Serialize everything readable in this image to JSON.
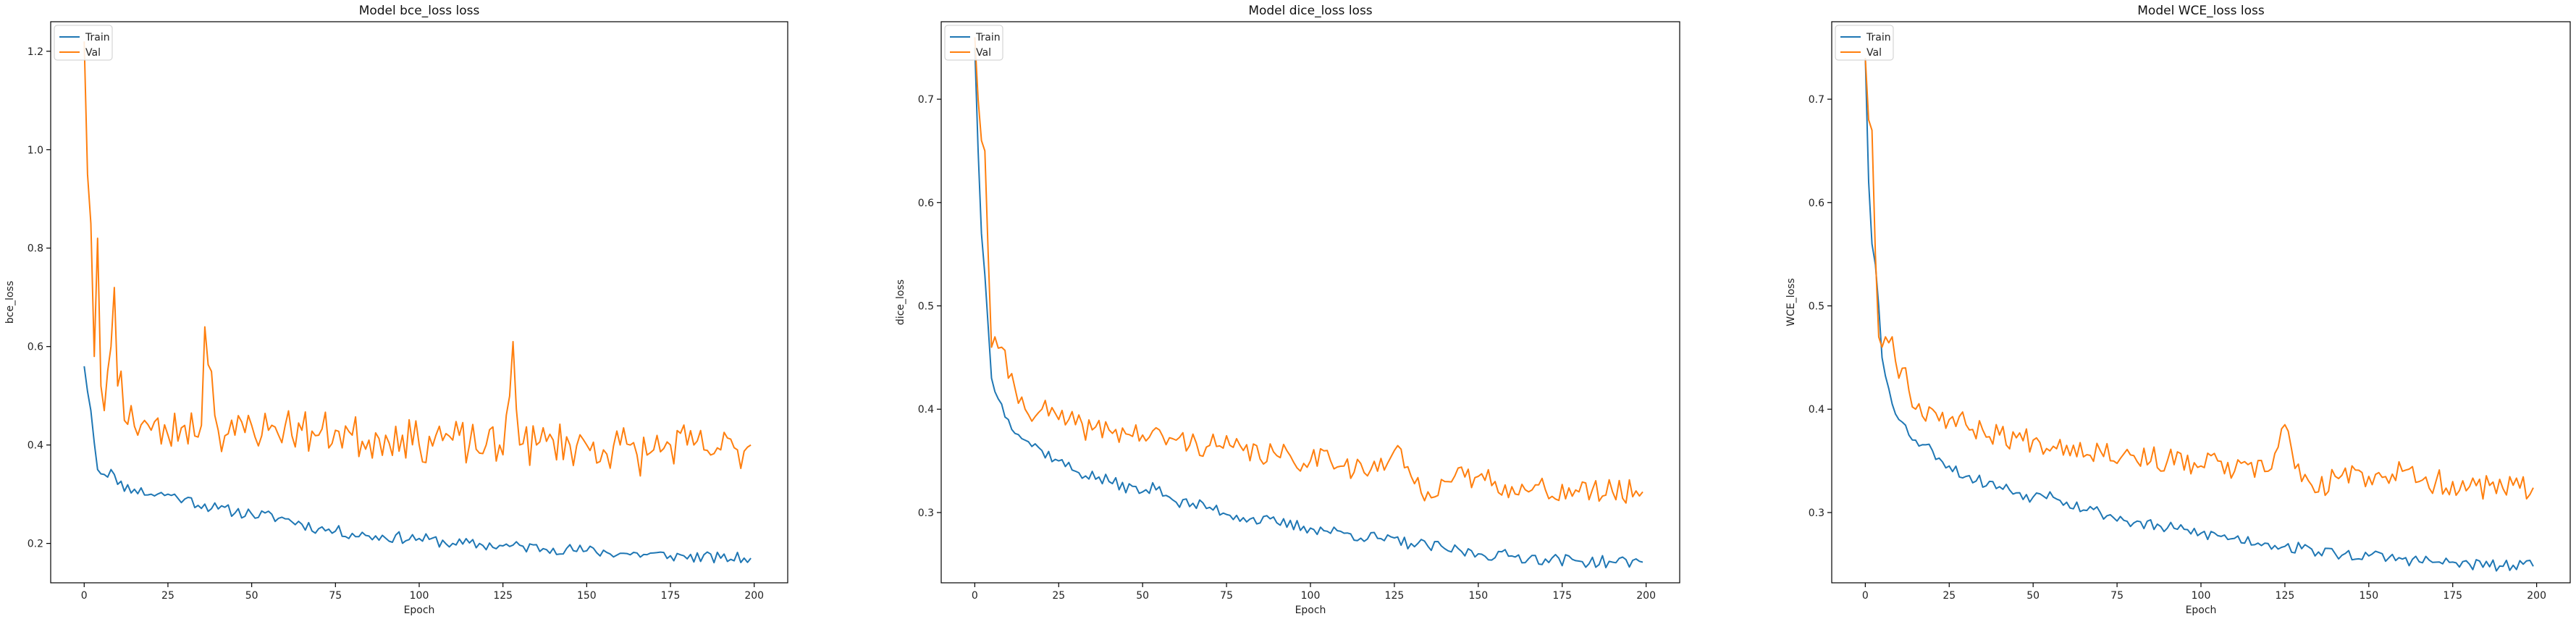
{
  "colors": {
    "train": "#1f77b4",
    "val": "#ff7f0e"
  },
  "chart_data": [
    {
      "type": "line",
      "title": "Model bce_loss loss",
      "xlabel": "Epoch",
      "ylabel": "bce_loss",
      "xlim": [
        -10,
        210
      ],
      "ylim": [
        0.12,
        1.26
      ],
      "xticks": [
        0,
        25,
        50,
        75,
        100,
        125,
        150,
        175,
        200
      ],
      "xtick_labels": [
        "0",
        "25",
        "50",
        "75",
        "100",
        "125",
        "150",
        "175",
        "200"
      ],
      "yticks": [
        0.2,
        0.4,
        0.6,
        0.8,
        1.0,
        1.2
      ],
      "ytick_labels": [
        "0.2",
        "0.4",
        "0.6",
        "0.8",
        "1.0",
        "1.2"
      ],
      "legend": "upper-left",
      "series": [
        {
          "name": "Train",
          "color": "train",
          "keypoints": [
            [
              0,
              0.56
            ],
            [
              2,
              0.47
            ],
            [
              4,
              0.35
            ],
            [
              6,
              0.34
            ],
            [
              8,
              0.35
            ],
            [
              10,
              0.32
            ],
            [
              15,
              0.31
            ],
            [
              20,
              0.3
            ],
            [
              25,
              0.3
            ],
            [
              30,
              0.29
            ],
            [
              40,
              0.27
            ],
            [
              50,
              0.26
            ],
            [
              60,
              0.25
            ],
            [
              70,
              0.23
            ],
            [
              75,
              0.225
            ],
            [
              85,
              0.215
            ],
            [
              100,
              0.21
            ],
            [
              110,
              0.2
            ],
            [
              125,
              0.195
            ],
            [
              140,
              0.19
            ],
            [
              150,
              0.185
            ],
            [
              160,
              0.18
            ],
            [
              175,
              0.175
            ],
            [
              190,
              0.17
            ],
            [
              199,
              0.17
            ]
          ],
          "noise": 0.012,
          "seed": 11
        },
        {
          "name": "Val",
          "color": "val",
          "keypoints": [
            [
              0,
              1.22
            ],
            [
              1,
              0.95
            ],
            [
              2,
              0.85
            ],
            [
              3,
              0.58
            ],
            [
              4,
              0.82
            ],
            [
              5,
              0.52
            ],
            [
              6,
              0.47
            ],
            [
              7,
              0.55
            ],
            [
              8,
              0.6
            ],
            [
              9,
              0.72
            ],
            [
              10,
              0.52
            ],
            [
              11,
              0.55
            ],
            [
              12,
              0.45
            ],
            [
              14,
              0.48
            ],
            [
              16,
              0.42
            ],
            [
              18,
              0.45
            ],
            [
              20,
              0.43
            ],
            [
              25,
              0.42
            ],
            [
              30,
              0.44
            ],
            [
              35,
              0.44
            ],
            [
              36,
              0.64
            ],
            [
              40,
              0.43
            ],
            [
              45,
              0.42
            ],
            [
              50,
              0.44
            ],
            [
              55,
              0.43
            ],
            [
              60,
              0.44
            ],
            [
              65,
              0.43
            ],
            [
              70,
              0.42
            ],
            [
              75,
              0.43
            ],
            [
              80,
              0.42
            ],
            [
              85,
              0.41
            ],
            [
              90,
              0.42
            ],
            [
              95,
              0.42
            ],
            [
              100,
              0.4
            ],
            [
              105,
              0.42
            ],
            [
              110,
              0.41
            ],
            [
              115,
              0.4
            ],
            [
              120,
              0.4
            ],
            [
              125,
              0.38
            ],
            [
              128,
              0.61
            ],
            [
              130,
              0.4
            ],
            [
              135,
              0.4
            ],
            [
              140,
              0.41
            ],
            [
              145,
              0.4
            ],
            [
              150,
              0.4
            ],
            [
              155,
              0.39
            ],
            [
              160,
              0.4
            ],
            [
              165,
              0.38
            ],
            [
              170,
              0.39
            ],
            [
              175,
              0.4
            ],
            [
              180,
              0.4
            ],
            [
              185,
              0.39
            ],
            [
              190,
              0.39
            ],
            [
              195,
              0.39
            ],
            [
              199,
              0.4
            ]
          ],
          "noise": 0.045,
          "seed": 23
        }
      ]
    },
    {
      "type": "line",
      "title": "Model dice_loss loss",
      "xlabel": "Epoch",
      "ylabel": "dice_loss",
      "xlim": [
        -10,
        210
      ],
      "ylim": [
        0.232,
        0.775
      ],
      "xticks": [
        0,
        25,
        50,
        75,
        100,
        125,
        150,
        175,
        200
      ],
      "xtick_labels": [
        "0",
        "25",
        "50",
        "75",
        "100",
        "125",
        "150",
        "175",
        "200"
      ],
      "yticks": [
        0.3,
        0.4,
        0.5,
        0.6,
        0.7
      ],
      "ytick_labels": [
        "0.3",
        "0.4",
        "0.5",
        "0.6",
        "0.7"
      ],
      "legend": "upper-left",
      "series": [
        {
          "name": "Train",
          "color": "train",
          "keypoints": [
            [
              0,
              0.75
            ],
            [
              1,
              0.65
            ],
            [
              2,
              0.57
            ],
            [
              3,
              0.53
            ],
            [
              4,
              0.48
            ],
            [
              5,
              0.43
            ],
            [
              7,
              0.41
            ],
            [
              10,
              0.39
            ],
            [
              15,
              0.37
            ],
            [
              20,
              0.36
            ],
            [
              25,
              0.35
            ],
            [
              30,
              0.34
            ],
            [
              40,
              0.33
            ],
            [
              50,
              0.32
            ],
            [
              55,
              0.325
            ],
            [
              60,
              0.31
            ],
            [
              70,
              0.305
            ],
            [
              80,
              0.295
            ],
            [
              90,
              0.29
            ],
            [
              100,
              0.285
            ],
            [
              110,
              0.28
            ],
            [
              120,
              0.275
            ],
            [
              130,
              0.27
            ],
            [
              140,
              0.265
            ],
            [
              150,
              0.26
            ],
            [
              160,
              0.258
            ],
            [
              170,
              0.255
            ],
            [
              180,
              0.253
            ],
            [
              190,
              0.252
            ],
            [
              199,
              0.252
            ]
          ],
          "noise": 0.006,
          "seed": 37
        },
        {
          "name": "Val",
          "color": "val",
          "keypoints": [
            [
              0,
              0.76
            ],
            [
              1,
              0.7
            ],
            [
              2,
              0.66
            ],
            [
              3,
              0.65
            ],
            [
              4,
              0.55
            ],
            [
              5,
              0.46
            ],
            [
              6,
              0.47
            ],
            [
              8,
              0.46
            ],
            [
              10,
              0.43
            ],
            [
              12,
              0.42
            ],
            [
              15,
              0.4
            ],
            [
              20,
              0.4
            ],
            [
              25,
              0.39
            ],
            [
              30,
              0.385
            ],
            [
              35,
              0.38
            ],
            [
              40,
              0.38
            ],
            [
              50,
              0.375
            ],
            [
              60,
              0.37
            ],
            [
              70,
              0.365
            ],
            [
              80,
              0.36
            ],
            [
              90,
              0.355
            ],
            [
              100,
              0.35
            ],
            [
              105,
              0.36
            ],
            [
              110,
              0.345
            ],
            [
              120,
              0.34
            ],
            [
              125,
              0.36
            ],
            [
              130,
              0.335
            ],
            [
              135,
              0.32
            ],
            [
              140,
              0.33
            ],
            [
              150,
              0.335
            ],
            [
              155,
              0.33
            ],
            [
              160,
              0.325
            ],
            [
              165,
              0.32
            ],
            [
              170,
              0.322
            ],
            [
              180,
              0.32
            ],
            [
              190,
              0.32
            ],
            [
              199,
              0.32
            ]
          ],
          "noise": 0.012,
          "seed": 41
        }
      ]
    },
    {
      "type": "line",
      "title": "Model WCE_loss loss",
      "xlabel": "Epoch",
      "ylabel": "WCE_loss",
      "xlim": [
        -10,
        210
      ],
      "ylim": [
        0.232,
        0.775
      ],
      "xticks": [
        0,
        25,
        50,
        75,
        100,
        125,
        150,
        175,
        200
      ],
      "xtick_labels": [
        "0",
        "25",
        "50",
        "75",
        "100",
        "125",
        "150",
        "175",
        "200"
      ],
      "yticks": [
        0.3,
        0.4,
        0.5,
        0.6,
        0.7
      ],
      "ytick_labels": [
        "0.3",
        "0.4",
        "0.5",
        "0.6",
        "0.7"
      ],
      "legend": "upper-left",
      "series": [
        {
          "name": "Train",
          "color": "train",
          "keypoints": [
            [
              0,
              0.74
            ],
            [
              1,
              0.62
            ],
            [
              2,
              0.56
            ],
            [
              3,
              0.54
            ],
            [
              4,
              0.5
            ],
            [
              5,
              0.45
            ],
            [
              7,
              0.42
            ],
            [
              10,
              0.39
            ],
            [
              15,
              0.37
            ],
            [
              20,
              0.36
            ],
            [
              25,
              0.345
            ],
            [
              30,
              0.335
            ],
            [
              40,
              0.325
            ],
            [
              50,
              0.315
            ],
            [
              55,
              0.32
            ],
            [
              60,
              0.31
            ],
            [
              70,
              0.3
            ],
            [
              80,
              0.29
            ],
            [
              90,
              0.285
            ],
            [
              100,
              0.28
            ],
            [
              110,
              0.275
            ],
            [
              120,
              0.27
            ],
            [
              130,
              0.265
            ],
            [
              140,
              0.26
            ],
            [
              150,
              0.258
            ],
            [
              160,
              0.255
            ],
            [
              170,
              0.252
            ],
            [
              180,
              0.25
            ],
            [
              190,
              0.248
            ],
            [
              199,
              0.248
            ]
          ],
          "noise": 0.006,
          "seed": 53
        },
        {
          "name": "Val",
          "color": "val",
          "keypoints": [
            [
              0,
              0.74
            ],
            [
              1,
              0.68
            ],
            [
              2,
              0.67
            ],
            [
              3,
              0.55
            ],
            [
              4,
              0.47
            ],
            [
              5,
              0.46
            ],
            [
              6,
              0.47
            ],
            [
              8,
              0.47
            ],
            [
              10,
              0.43
            ],
            [
              12,
              0.44
            ],
            [
              15,
              0.4
            ],
            [
              20,
              0.4
            ],
            [
              25,
              0.39
            ],
            [
              30,
              0.385
            ],
            [
              35,
              0.38
            ],
            [
              40,
              0.375
            ],
            [
              50,
              0.37
            ],
            [
              60,
              0.365
            ],
            [
              70,
              0.36
            ],
            [
              80,
              0.355
            ],
            [
              90,
              0.35
            ],
            [
              100,
              0.345
            ],
            [
              105,
              0.35
            ],
            [
              110,
              0.34
            ],
            [
              120,
              0.34
            ],
            [
              125,
              0.385
            ],
            [
              130,
              0.33
            ],
            [
              135,
              0.32
            ],
            [
              140,
              0.335
            ],
            [
              150,
              0.335
            ],
            [
              160,
              0.34
            ],
            [
              165,
              0.33
            ],
            [
              170,
              0.33
            ],
            [
              180,
              0.325
            ],
            [
              190,
              0.323
            ],
            [
              199,
              0.324
            ]
          ],
          "noise": 0.012,
          "seed": 67
        }
      ]
    }
  ]
}
